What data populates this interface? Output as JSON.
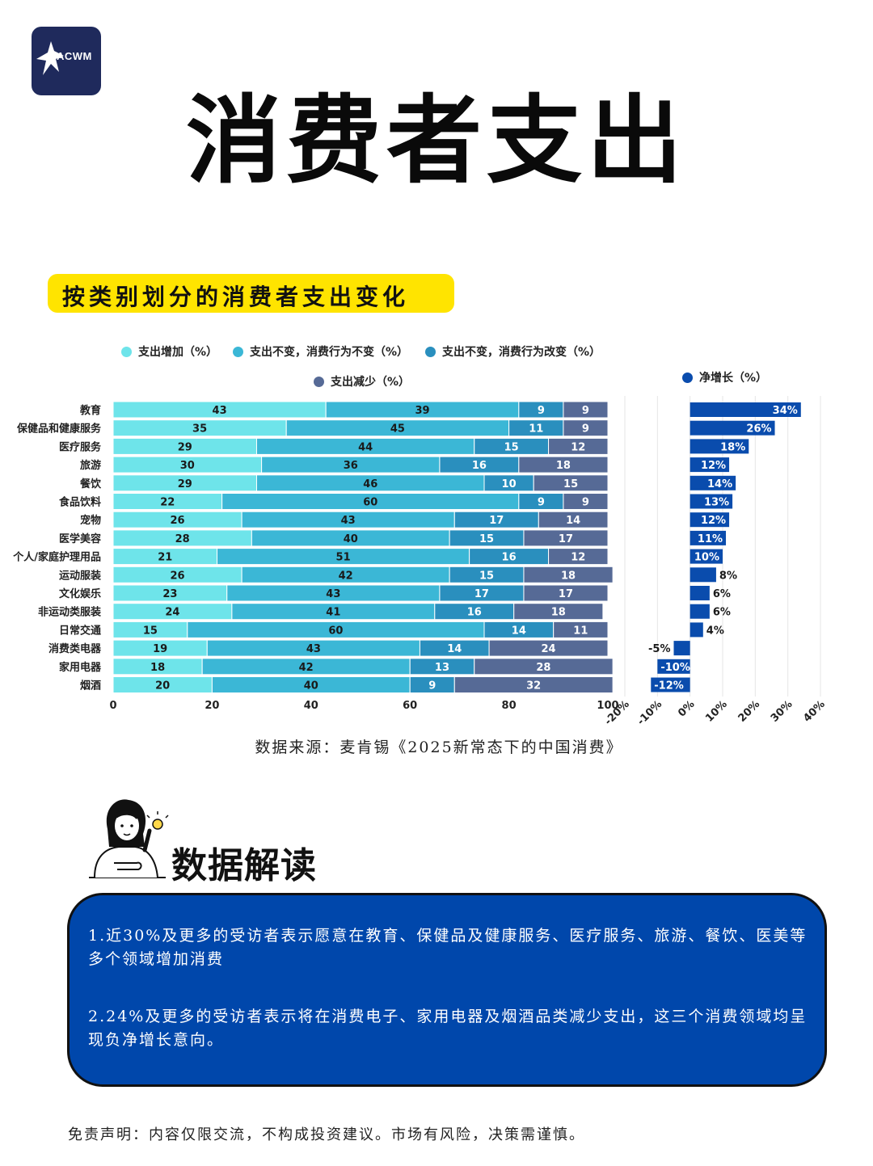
{
  "logo": {
    "text": "ACWM",
    "icon": "eagle-icon"
  },
  "title": "消费者支出",
  "subtitle": "按类别划分的消费者支出变化",
  "colors": {
    "increase": "#6ee4ea",
    "same_behavior_same": "#3bb7d6",
    "same_behavior_change": "#2a8fbe",
    "decrease": "#566a96",
    "net": "#0a4cad",
    "highlight": "#ffe400",
    "box": "#0047ab"
  },
  "chart_data": [
    {
      "type": "bar",
      "orientation": "horizontal",
      "stacked": true,
      "categories": [
        "教育",
        "保健品和健康服务",
        "医疗服务",
        "旅游",
        "餐饮",
        "食品饮料",
        "宠物",
        "医学美容",
        "个人/家庭护理用品",
        "运动服装",
        "文化娱乐",
        "非运动类服装",
        "日常交通",
        "消费类电器",
        "家用电器",
        "烟酒"
      ],
      "series": [
        {
          "name": "支出增加（%）",
          "values": [
            43,
            35,
            29,
            30,
            29,
            22,
            26,
            28,
            21,
            26,
            23,
            24,
            15,
            19,
            18,
            20
          ]
        },
        {
          "name": "支出不变，消费行为不变（%）",
          "values": [
            39,
            45,
            44,
            36,
            46,
            60,
            43,
            40,
            51,
            42,
            43,
            41,
            60,
            43,
            42,
            40
          ]
        },
        {
          "name": "支出不变，消费行为改变（%）",
          "values": [
            9,
            11,
            15,
            16,
            10,
            9,
            17,
            15,
            16,
            15,
            17,
            16,
            14,
            14,
            13,
            9
          ]
        },
        {
          "name": "支出减少（%）",
          "values": [
            9,
            9,
            12,
            18,
            15,
            9,
            14,
            17,
            12,
            18,
            17,
            18,
            11,
            24,
            28,
            32
          ]
        }
      ],
      "xlim": [
        0,
        100
      ],
      "xticks": [
        "0",
        "20",
        "40",
        "60",
        "80",
        "100"
      ],
      "legend": "top"
    },
    {
      "type": "bar",
      "orientation": "horizontal",
      "categories": [
        "教育",
        "保健品和健康服务",
        "医疗服务",
        "旅游",
        "餐饮",
        "食品饮料",
        "宠物",
        "医学美容",
        "个人/家庭护理用品",
        "运动服装",
        "文化娱乐",
        "非运动类服装",
        "日常交通",
        "消费类电器",
        "家用电器",
        "烟酒"
      ],
      "series": [
        {
          "name": "净增长（%）",
          "values": [
            34,
            26,
            18,
            12,
            14,
            13,
            12,
            11,
            10,
            8,
            6,
            6,
            4,
            -5,
            -10,
            -12
          ]
        }
      ],
      "value_labels": [
        "34%",
        "26%",
        "18%",
        "12%",
        "14%",
        "13%",
        "12%",
        "11%",
        "10%",
        "8%",
        "6%",
        "6%",
        "4%",
        "-5%",
        "-10%",
        "-12%"
      ],
      "xlim": [
        -20,
        40
      ],
      "xticks": [
        "-20%",
        "-10%",
        "0%",
        "10%",
        "20%",
        "30%",
        "40%"
      ],
      "grid": true,
      "legend": "top"
    }
  ],
  "source": "数据来源：麦肯锡《2025新常态下的中国消费》",
  "section_title": "数据解读",
  "insights": [
    "1.近30%及更多的受访者表示愿意在教育、保健品及健康服务、医疗服务、旅游、餐饮、医美等多个领域增加消费",
    "2.24%及更多的受访者表示将在消费电子、家用电器及烟酒品类减少支出，这三个消费领域均呈现负净增长意向。"
  ],
  "disclaimer": "免责声明：内容仅限交流，不构成投资建议。市场有风险，决策需谨慎。"
}
